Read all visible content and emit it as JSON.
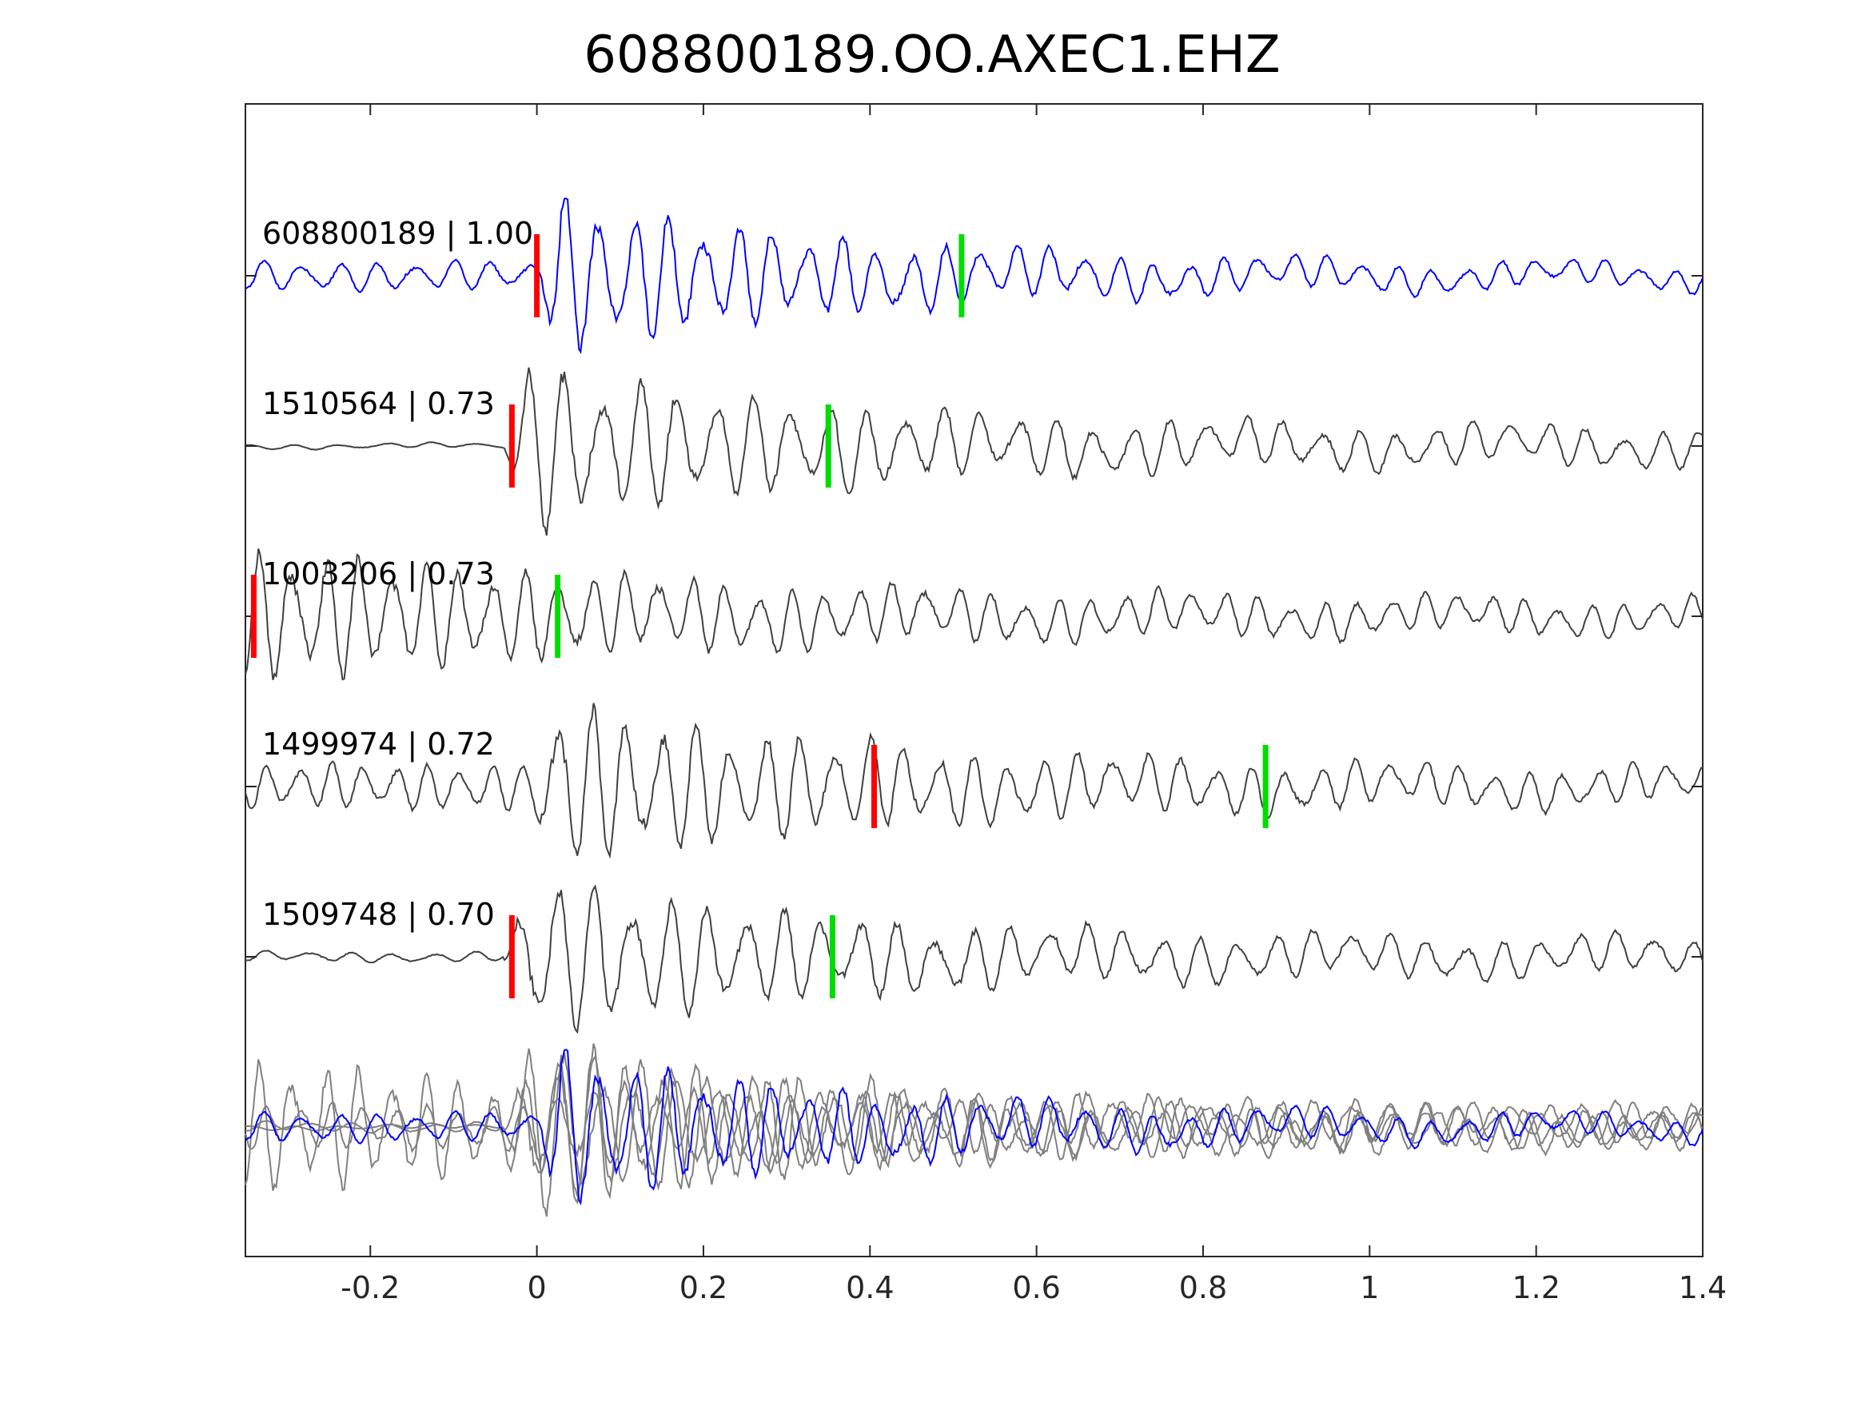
{
  "chart_data": {
    "type": "line",
    "title": "608800189.OO.AXEC1.EHZ",
    "xlabel": "",
    "ylabel": "",
    "xlim": [
      -0.35,
      1.4
    ],
    "xticks": [
      -0.2,
      0,
      0.2,
      0.4,
      0.6,
      0.8,
      1,
      1.2,
      1.4
    ],
    "xtick_labels": [
      "-0.2",
      "0",
      "0.2",
      "0.4",
      "0.6",
      "0.8",
      "1",
      "1.2",
      "1.4"
    ],
    "grid": false,
    "colors": {
      "master": "#0000ff",
      "trace": "#404040",
      "overlay": "#808080",
      "p_pick": "#ff0000",
      "s_pick": "#00dd00",
      "axis": "#262626"
    },
    "series": [
      {
        "id": "608800189",
        "label": "608800189 | 1.00",
        "master": true,
        "p_pick": 0.0,
        "s_pick": 0.51,
        "onset": 0.0,
        "freq": 24,
        "amp": 1.0,
        "pre_noise": 0.18,
        "pre_freq": 22,
        "decay": 0.38,
        "coda": 0.12
      },
      {
        "id": "1510564",
        "label": "1510564 | 0.73",
        "master": false,
        "p_pick": -0.03,
        "s_pick": 0.35,
        "onset": -0.04,
        "freq": 22,
        "amp": 1.05,
        "pre_noise": 0.03,
        "pre_freq": 18,
        "decay": 0.36,
        "coda": 0.22
      },
      {
        "id": "1003206",
        "label": "1003206 | 0.73",
        "master": false,
        "p_pick": -0.34,
        "s_pick": 0.025,
        "onset": -0.35,
        "freq": 25,
        "amp": 0.85,
        "pre_noise": 0.75,
        "pre_freq": 25,
        "decay": 0.55,
        "coda": 0.18
      },
      {
        "id": "1499974",
        "label": "1499974 | 0.72",
        "master": false,
        "p_pick": 0.405,
        "s_pick": 0.875,
        "onset": -0.01,
        "freq": 24,
        "amp": 1.05,
        "pre_noise": 0.28,
        "pre_freq": 26,
        "decay": 0.42,
        "coda": 0.2
      },
      {
        "id": "1509748",
        "label": "1509748 | 0.70",
        "master": false,
        "p_pick": -0.03,
        "s_pick": 0.355,
        "onset": -0.04,
        "freq": 22,
        "amp": 1.05,
        "pre_noise": 0.06,
        "pre_freq": 20,
        "decay": 0.36,
        "coda": 0.22
      }
    ]
  }
}
